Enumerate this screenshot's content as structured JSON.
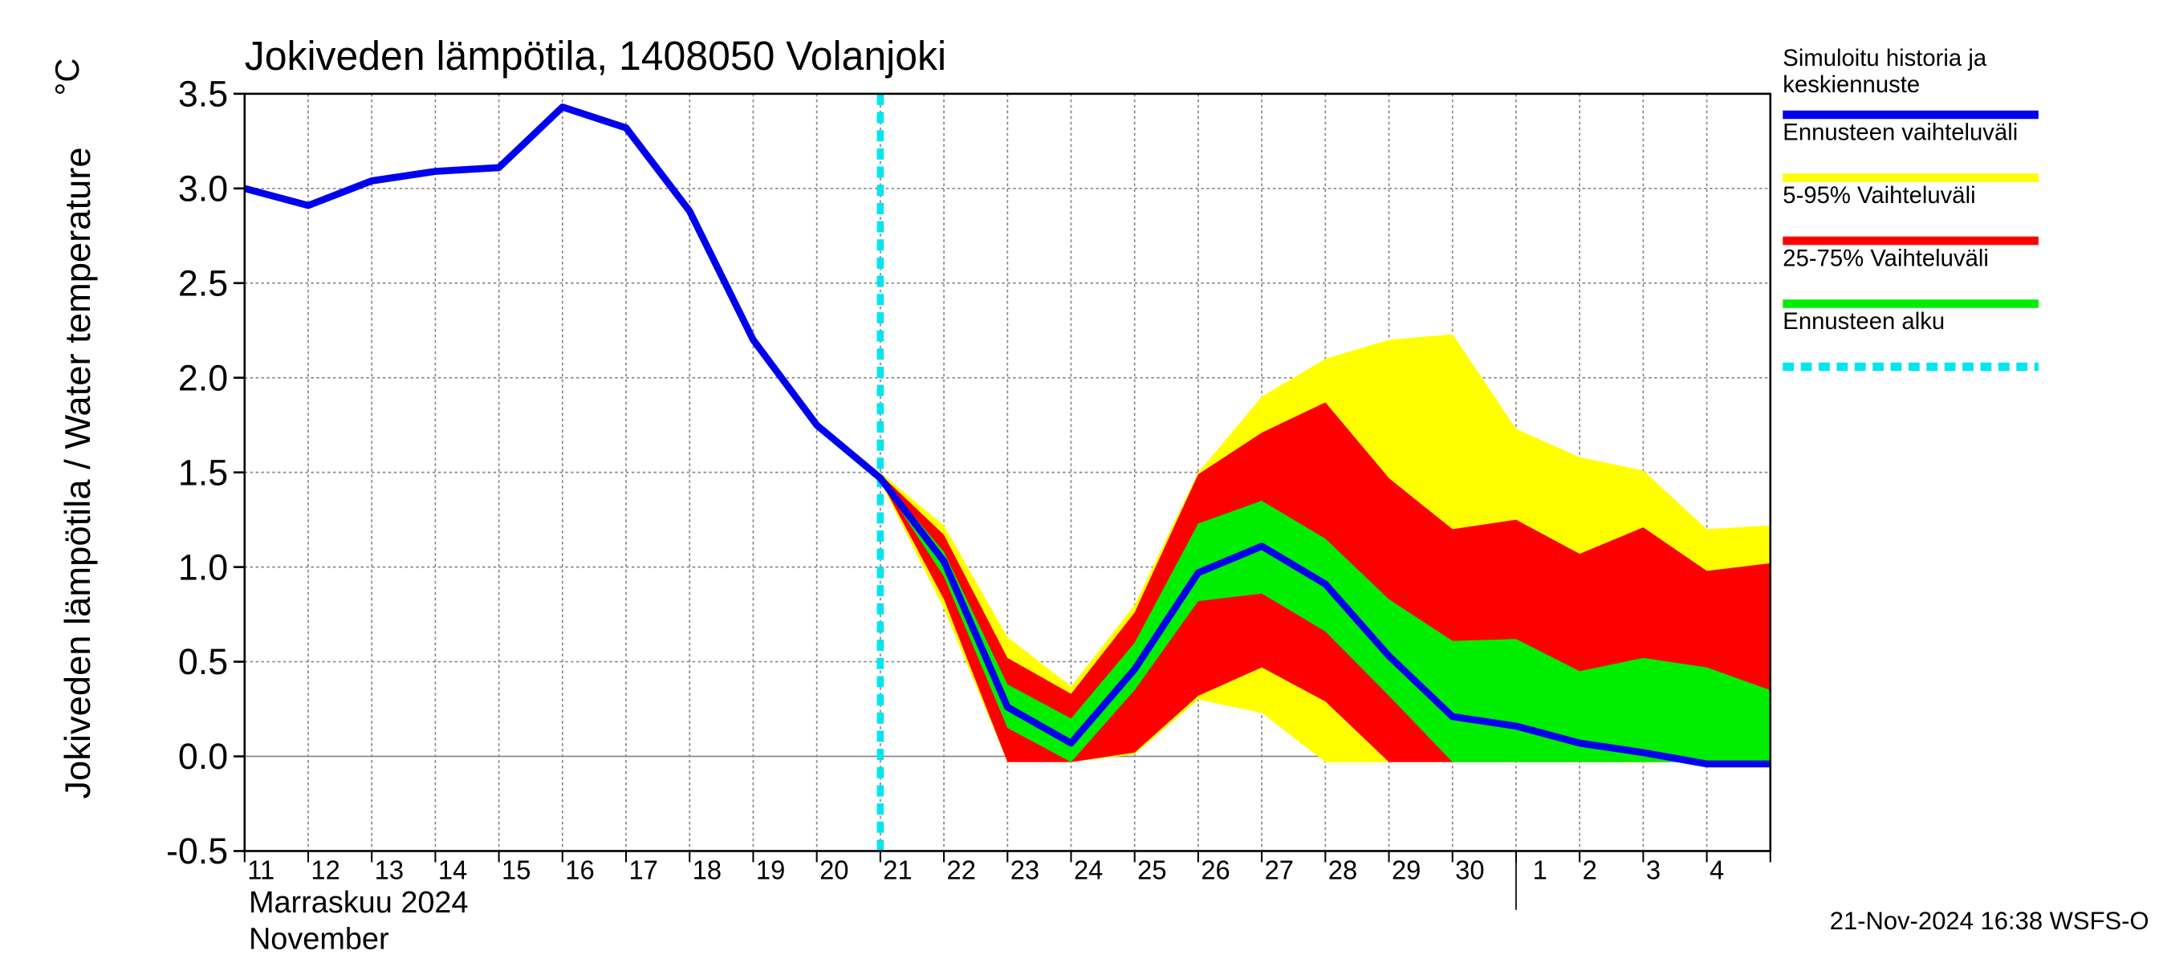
{
  "chart_data": {
    "type": "line",
    "title": "Jokiveden lämpötila, 1408050 Volanjoki",
    "y_label": "Jokiveden lämpötila / Water temperature",
    "y_unit": "°C",
    "month_label": "Marraskuu 2024",
    "month_label_en": "November",
    "footer": "21-Nov-2024 16:38 WSFS-O",
    "month_break": "1",
    "categories": [
      "11",
      "12",
      "13",
      "14",
      "15",
      "16",
      "17",
      "18",
      "19",
      "20",
      "21",
      "22",
      "23",
      "24",
      "25",
      "26",
      "27",
      "28",
      "29",
      "30",
      "1",
      "2",
      "3",
      "4",
      null
    ],
    "ylim": [
      -0.5,
      3.5
    ],
    "yticks": [
      -0.5,
      {
        "value": 0,
        "label": "0.0"
      },
      0.5,
      {
        "value": 1,
        "label": "1.0"
      },
      1.5,
      {
        "value": 2,
        "label": "2.0"
      },
      2.5,
      {
        "value": 3,
        "label": "3.0"
      },
      3.5
    ],
    "grid": true,
    "legend": "right",
    "series": [
      {
        "name": "Simuloitu historia ja keskiennuste",
        "color": "#0000ee",
        "kind": "line",
        "values": [
          3.0,
          2.91,
          3.04,
          3.09,
          3.11,
          3.43,
          3.32,
          2.88,
          2.2,
          1.75,
          1.47,
          1.03,
          0.26,
          0.07,
          0.46,
          0.97,
          1.11,
          0.91,
          0.53,
          0.21,
          0.16,
          0.07,
          0.02,
          -0.04,
          -0.04
        ]
      },
      {
        "name": "Ennusteen vaihteluväli",
        "color": "#ffff00",
        "kind": "band",
        "high": [
          null,
          null,
          null,
          null,
          null,
          null,
          null,
          null,
          null,
          null,
          1.5,
          1.22,
          0.63,
          0.37,
          0.8,
          1.5,
          1.9,
          2.1,
          2.2,
          2.23,
          1.73,
          1.58,
          1.51,
          1.2,
          1.22
        ],
        "low": [
          null,
          null,
          null,
          null,
          null,
          null,
          null,
          null,
          null,
          null,
          1.45,
          0.78,
          -0.03,
          -0.03,
          0.01,
          0.3,
          0.23,
          -0.03,
          -0.03,
          -0.03,
          -0.03,
          -0.03,
          -0.03,
          -0.03,
          -0.03
        ]
      },
      {
        "name": "5-95% Vaihteluväli",
        "color": "#ff0000",
        "kind": "band",
        "high": [
          null,
          null,
          null,
          null,
          null,
          null,
          null,
          null,
          null,
          null,
          1.49,
          1.17,
          0.52,
          0.33,
          0.76,
          1.49,
          1.71,
          1.87,
          1.47,
          1.2,
          1.25,
          1.07,
          1.21,
          0.98,
          1.02
        ],
        "low": [
          null,
          null,
          null,
          null,
          null,
          null,
          null,
          null,
          null,
          null,
          1.46,
          0.83,
          -0.03,
          -0.03,
          0.02,
          0.32,
          0.47,
          0.29,
          -0.03,
          -0.03,
          -0.03,
          -0.03,
          -0.03,
          -0.03,
          -0.03
        ]
      },
      {
        "name": "25-75% Vaihteluväli",
        "color": "#00ee00",
        "kind": "band",
        "high": [
          null,
          null,
          null,
          null,
          null,
          null,
          null,
          null,
          null,
          null,
          1.48,
          1.08,
          0.38,
          0.2,
          0.6,
          1.23,
          1.35,
          1.15,
          0.83,
          0.61,
          0.62,
          0.45,
          0.52,
          0.47,
          0.35
        ],
        "low": [
          null,
          null,
          null,
          null,
          null,
          null,
          null,
          null,
          null,
          null,
          1.46,
          0.95,
          0.15,
          -0.03,
          0.35,
          0.82,
          0.86,
          0.66,
          0.32,
          -0.03,
          -0.03,
          -0.03,
          -0.03,
          -0.03,
          -0.03
        ]
      },
      {
        "name": "Ennusteen alku",
        "color": "#00e5ee",
        "kind": "vline",
        "at": "21"
      }
    ]
  }
}
